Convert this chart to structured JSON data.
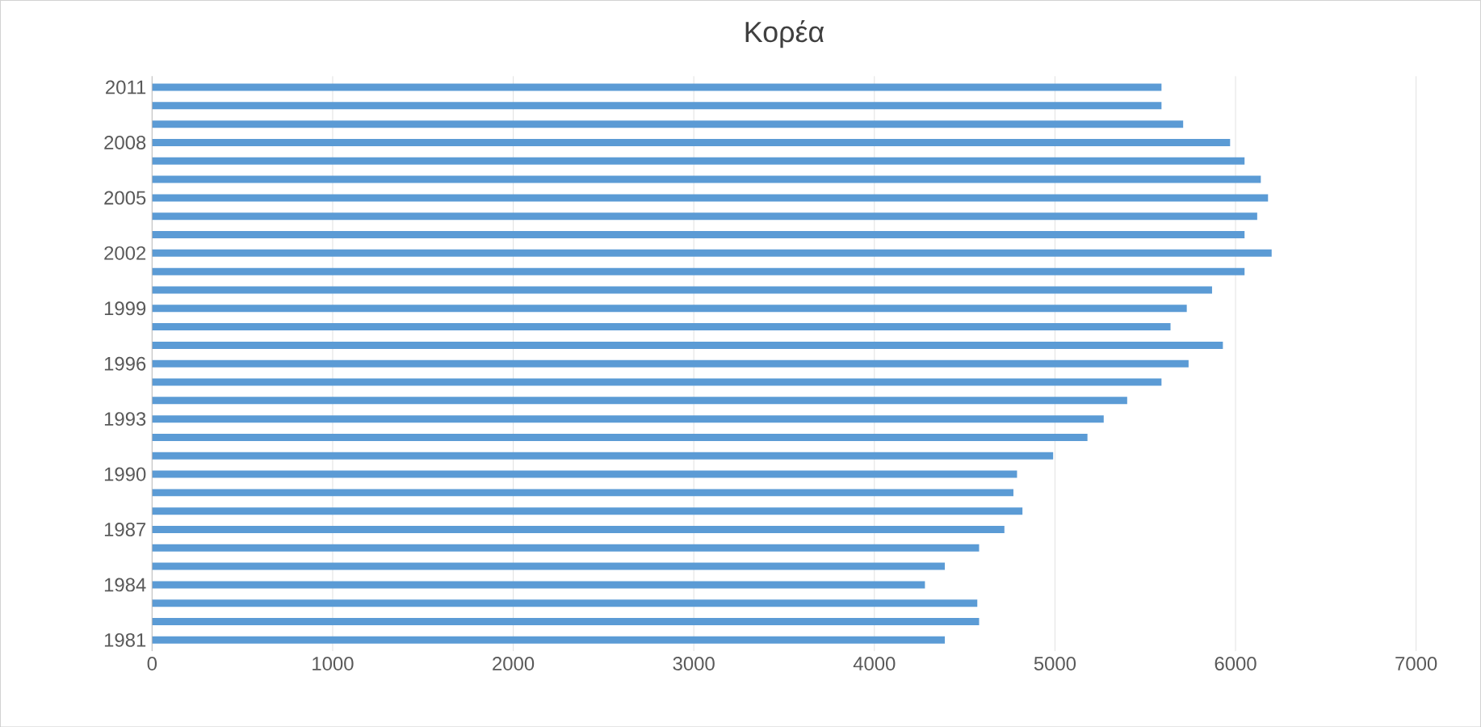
{
  "chart_data": {
    "type": "bar",
    "orientation": "horizontal",
    "title": "Κορέα",
    "categories": [
      "2011",
      null,
      null,
      "2008",
      null,
      null,
      "2005",
      null,
      null,
      "2002",
      null,
      null,
      "1999",
      null,
      null,
      "1996",
      null,
      null,
      "1993",
      null,
      null,
      "1990",
      null,
      null,
      "1987",
      null,
      null,
      "1984",
      null,
      null,
      "1981"
    ],
    "values": [
      5590,
      5590,
      5710,
      5970,
      6050,
      6140,
      6180,
      6120,
      6050,
      6200,
      6050,
      5870,
      5730,
      5640,
      5930,
      5740,
      5590,
      5400,
      5270,
      5180,
      4990,
      4790,
      4770,
      4820,
      4720,
      4580,
      4390,
      4280,
      4570,
      4580,
      4390
    ],
    "color": "#5b9bd5",
    "xlim": [
      0,
      7000
    ],
    "xticks": [
      0,
      1000,
      2000,
      3000,
      4000,
      5000,
      6000,
      7000
    ],
    "grid": "x"
  }
}
